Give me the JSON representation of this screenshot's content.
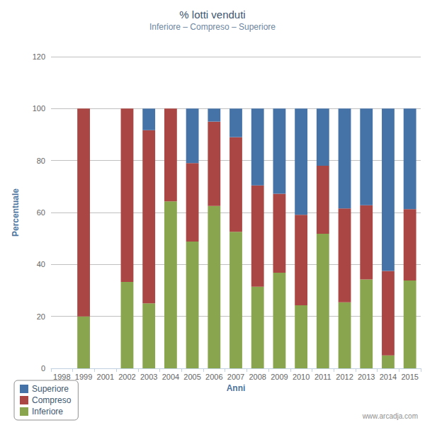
{
  "chart_data": {
    "type": "bar",
    "title": "% lotti venduti",
    "subtitle": "Inferiore – Compreso – Superiore",
    "x_label": "Anni",
    "y_label": "Percentuale",
    "annotations": [
      "www.arcadja.com"
    ],
    "categories": [
      "1998",
      "1999",
      "2001",
      "2002",
      "2003",
      "2004",
      "2005",
      "2006",
      "2007",
      "2008",
      "2009",
      "2010",
      "2011",
      "2012",
      "2013",
      "2014",
      "2015"
    ],
    "series": [
      {
        "name": "Inferiore",
        "color": "#89A54E",
        "values": [
          null,
          20,
          null,
          33.3,
          25,
          64.3,
          48.8,
          62.5,
          52.6,
          31.4,
          36.8,
          24.3,
          51.8,
          25.4,
          34.2,
          5,
          33.8
        ]
      },
      {
        "name": "Compreso",
        "color": "#AA4643",
        "values": [
          null,
          80,
          null,
          66.7,
          66.7,
          35.7,
          30.2,
          32.5,
          36.4,
          39,
          30.4,
          34.8,
          26.2,
          36.2,
          28.6,
          32.5,
          27.5
        ]
      },
      {
        "name": "Superiore",
        "color": "#4572A7",
        "values": [
          null,
          0,
          null,
          0,
          8.3,
          0,
          21,
          5,
          11,
          29.6,
          32.8,
          40.9,
          22,
          38.4,
          37.2,
          62.5,
          38.7
        ]
      }
    ],
    "ylim": [
      0,
      120
    ],
    "yticks": [
      0,
      20,
      40,
      60,
      80,
      100,
      120
    ],
    "stacked": true,
    "grid": true,
    "legend": "bottom-left"
  }
}
